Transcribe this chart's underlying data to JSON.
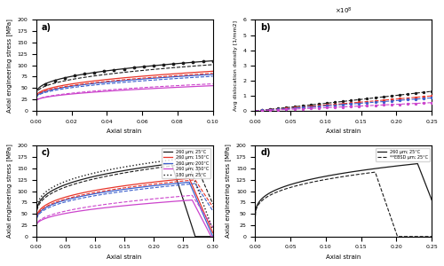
{
  "fig_size": [
    5.0,
    3.0
  ],
  "dpi": 100,
  "colors": {
    "black": "#1a1a1a",
    "red": "#e8352a",
    "blue": "#3a5fcd",
    "magenta": "#cc44cc"
  },
  "subplot_a": {
    "label": "a)",
    "xlim": [
      0,
      0.1
    ],
    "ylim": [
      0,
      200
    ],
    "xlabel": "Axial strain",
    "ylabel": "Axial engineering stress [MPa]",
    "xticks": [
      0,
      0.02,
      0.04,
      0.06,
      0.08,
      0.1
    ]
  },
  "subplot_b": {
    "label": "b)",
    "xlim": [
      0,
      0.25
    ],
    "ylim": [
      0,
      600000000.0
    ],
    "xlabel": "Axial strain",
    "ylabel": "Avg dislocation density [1/mm2]",
    "xticks": [
      0,
      0.05,
      0.1,
      0.15,
      0.2,
      0.25
    ]
  },
  "subplot_c": {
    "label": "c)",
    "xlim": [
      0,
      0.3
    ],
    "ylim": [
      0,
      200
    ],
    "xlabel": "Axial strain",
    "ylabel": "Axial engineering stress [MPa]",
    "xticks": [
      0,
      0.05,
      0.1,
      0.15,
      0.2,
      0.25,
      0.3
    ],
    "legend": [
      {
        "label": "260 μm; 25°C",
        "color": "#1a1a1a",
        "ls": "-"
      },
      {
        "label": "260 μm; 150°C",
        "color": "#e8352a",
        "ls": "-"
      },
      {
        "label": "260 μm; 200°C",
        "color": "#3a5fcd",
        "ls": "-"
      },
      {
        "label": "260 μm; 350°C",
        "color": "#cc44cc",
        "ls": "-"
      },
      {
        "label": "180 μm; 25°C",
        "color": "#1a1a1a",
        "ls": ":"
      }
    ]
  },
  "subplot_d": {
    "label": "d)",
    "xlim": [
      0,
      0.25
    ],
    "ylim": [
      0,
      200
    ],
    "xlabel": "Axial strain",
    "ylabel": "Axial engineering stress [MPa]",
    "xticks": [
      0,
      0.05,
      0.1,
      0.15,
      0.2,
      0.25
    ],
    "legend": [
      {
        "label": "260 μm; 25°C",
        "color": "#1a1a1a",
        "ls": "-"
      },
      {
        "label": "**EBSD μm; 25°C",
        "color": "#1a1a1a",
        "ls": "--"
      }
    ]
  }
}
